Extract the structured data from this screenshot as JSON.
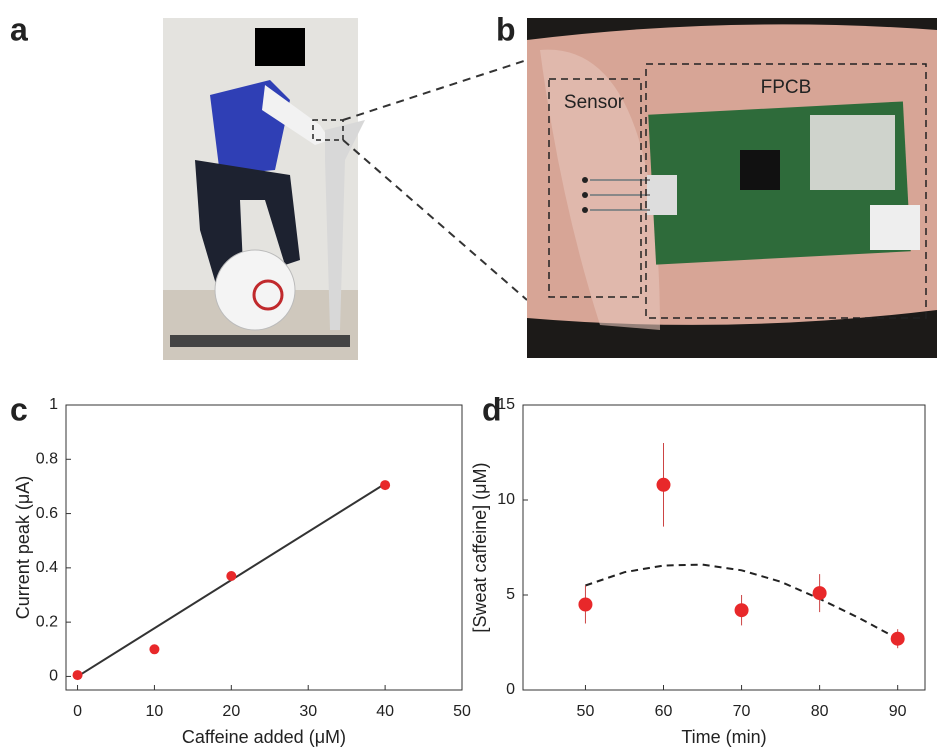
{
  "panel_labels": [
    "a",
    "b",
    "c",
    "d"
  ],
  "photo_b": {
    "labels": [
      "Sensor",
      "FPCB"
    ]
  },
  "chart_data": [
    {
      "type": "scatter",
      "xlabel": "Caffeine added (μM)",
      "ylabel": "Current peak (μA)",
      "x": [
        0,
        10,
        20,
        40
      ],
      "values": [
        0.005,
        0.1,
        0.37,
        0.705
      ],
      "color": "#e8282a",
      "fit": {
        "x": [
          0,
          40
        ],
        "values": [
          0,
          0.71
        ],
        "color": "#333333",
        "dashed": false
      },
      "xlim": [
        -1.5,
        50
      ],
      "ylim": [
        -0.05,
        1
      ],
      "xticks": [
        0,
        10,
        20,
        30,
        40,
        50
      ],
      "yticks": [
        0,
        0.2,
        0.4,
        0.6,
        0.8,
        1
      ]
    },
    {
      "type": "scatter",
      "xlabel": "Time (min)",
      "ylabel": "[Sweat caffeine] (μM)",
      "x": [
        50,
        60,
        70,
        80,
        90
      ],
      "values": [
        4.5,
        10.8,
        4.2,
        5.1,
        2.7
      ],
      "errors": [
        1,
        2.2,
        0.8,
        1,
        0.5
      ],
      "color": "#e8282a",
      "fit": {
        "x": [
          50,
          55,
          60,
          65,
          70,
          75,
          80,
          85,
          90
        ],
        "values": [
          5.5,
          6.2,
          6.55,
          6.6,
          6.3,
          5.7,
          4.8,
          3.8,
          2.7
        ],
        "color": "#222222",
        "dashed": true
      },
      "xlim": [
        42,
        93.5
      ],
      "ylim": [
        0,
        15
      ],
      "xticks": [
        50,
        60,
        70,
        80,
        90
      ],
      "yticks": [
        0,
        5,
        10,
        15
      ]
    }
  ]
}
